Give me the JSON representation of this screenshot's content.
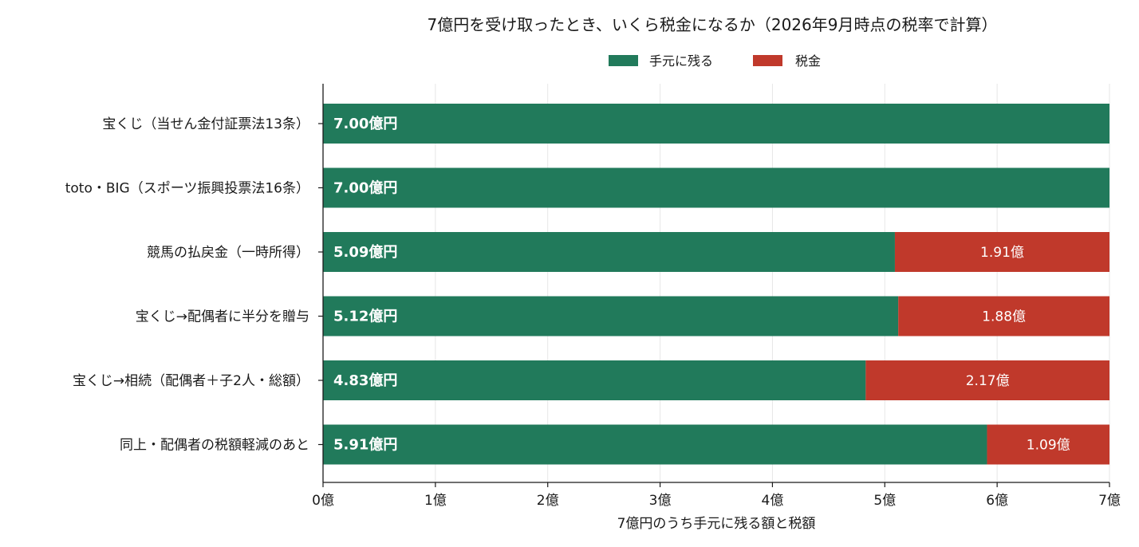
{
  "chart_data": {
    "type": "bar",
    "orientation": "horizontal",
    "stacked": true,
    "title": "7億円を受け取ったとき、いくら税金になるか（2026年9月時点の税率で計算）",
    "xlabel": "7億円のうち手元に残る額と税額",
    "ylabel": "",
    "xlim": [
      0,
      7
    ],
    "x_ticks": [
      0,
      1,
      2,
      3,
      4,
      5,
      6,
      7
    ],
    "x_tick_labels": [
      "0億",
      "1億",
      "2億",
      "3億",
      "4億",
      "5億",
      "6億",
      "7億"
    ],
    "grid": "vertical",
    "legend_position": "top-center",
    "categories": [
      "宝くじ（当せん金付証票法13条）",
      "toto・BIG（スポーツ振興投票法16条）",
      "競馬の払戻金（一時所得）",
      "宝くじ→配偶者に半分を贈与",
      "宝くじ→相続（配偶者＋子2人・総額）",
      "同上・配偶者の税額軽減のあと"
    ],
    "series": [
      {
        "name": "手元に残る",
        "color": "#217a5b",
        "values": [
          7.0,
          7.0,
          5.09,
          5.12,
          4.83,
          5.91
        ],
        "labels": [
          "7.00億円",
          "7.00億円",
          "5.09億円",
          "5.12億円",
          "4.83億円",
          "5.91億円"
        ]
      },
      {
        "name": "税金",
        "color": "#c0392b",
        "values": [
          0,
          0,
          1.91,
          1.88,
          2.17,
          1.09
        ],
        "labels": [
          "",
          "",
          "1.91億",
          "1.88億",
          "2.17億",
          "1.09億"
        ]
      }
    ]
  }
}
